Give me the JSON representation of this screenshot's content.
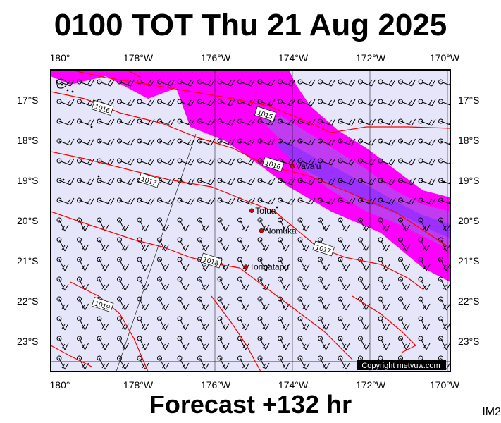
{
  "title": "0100 TOT Thu 21 Aug 2025",
  "footer": "Forecast +132 hr",
  "corner_label": "IM2",
  "copyright": "Copyright metvuw.com",
  "lon_ticks": [
    "180°",
    "178°W",
    "176°W",
    "174°W",
    "172°W",
    "170°W"
  ],
  "lat_ticks": [
    "17°S",
    "18°S",
    "19°S",
    "20°S",
    "21°S",
    "22°S",
    "23°S"
  ],
  "places": [
    {
      "name": "Vava'u",
      "lon": -174.0,
      "lat": -18.65
    },
    {
      "name": "Tofua",
      "lon": -175.05,
      "lat": -19.75
    },
    {
      "name": "Nomuka",
      "lon": -174.8,
      "lat": -20.25
    },
    {
      "name": "Tongatapu",
      "lon": -175.2,
      "lat": -21.15
    }
  ],
  "isobars": [
    {
      "label": "1015",
      "lon": -174.7,
      "lat": -17.35
    },
    {
      "label": "1016",
      "lon": -178.9,
      "lat": -17.2
    },
    {
      "label": "1016",
      "lon": -174.5,
      "lat": -18.6
    },
    {
      "label": "1017",
      "lon": -177.7,
      "lat": -19.0
    },
    {
      "label": "1017",
      "lon": -173.2,
      "lat": -20.7
    },
    {
      "label": "1018",
      "lon": -176.1,
      "lat": -21.0
    },
    {
      "label": "1019",
      "lon": -178.9,
      "lat": -22.1
    }
  ],
  "colors": {
    "background": "#e6e6fa",
    "wind_band_1": "#ff00ff",
    "wind_band_2": "#c13cf0",
    "wind_band_3": "#9b30ff",
    "isobar": "#ff0000",
    "place_marker": "#dd0000"
  }
}
